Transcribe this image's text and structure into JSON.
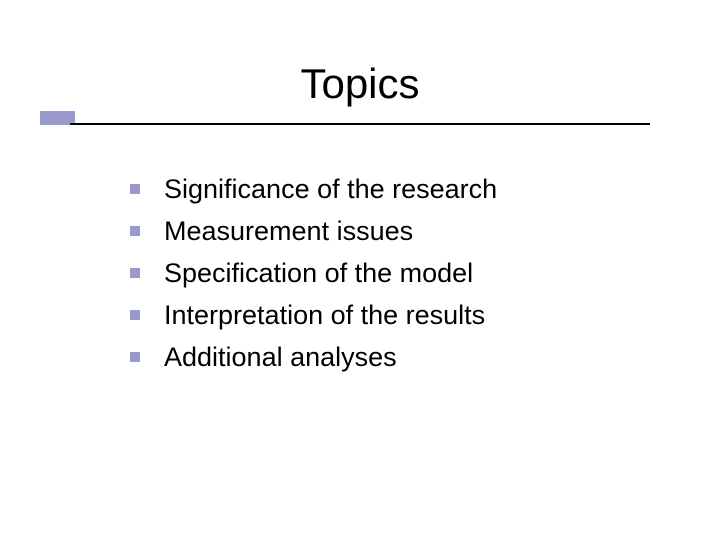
{
  "slide": {
    "title": "Topics",
    "title_fontsize": 42,
    "title_color": "#000000",
    "underline_color": "#000000",
    "accent_block_color": "#9999cc",
    "background_color": "#ffffff",
    "bullets": [
      {
        "text": "Significance of the research"
      },
      {
        "text": "Measurement issues"
      },
      {
        "text": "Specification of the model"
      },
      {
        "text": "Interpretation of the results"
      },
      {
        "text": "Additional analyses"
      }
    ],
    "bullet_marker_color": "#9999cc",
    "bullet_fontsize": 27,
    "bullet_text_color": "#000000"
  }
}
